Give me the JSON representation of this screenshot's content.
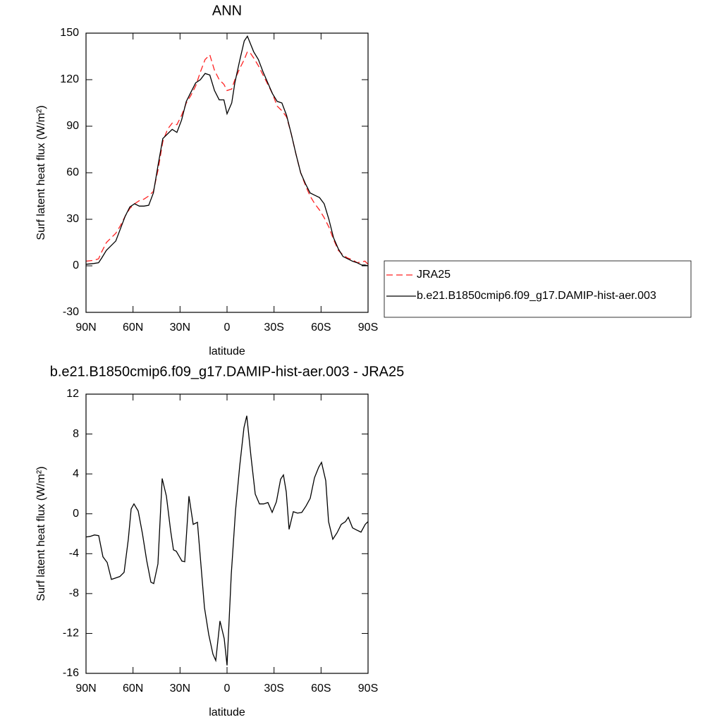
{
  "chart_data": [
    {
      "type": "line",
      "title": "ANN",
      "x_label": "latitude",
      "y_label": "Surf latent heat flux (W/m²)",
      "x": [
        90,
        85,
        82,
        80,
        77,
        74,
        71,
        68,
        65,
        62,
        59,
        56,
        53,
        50,
        47,
        44,
        41,
        38,
        35,
        32,
        29,
        26,
        23,
        20,
        17,
        14,
        11,
        8,
        5,
        2,
        0,
        -3,
        -5,
        -8,
        -11,
        -13,
        -15,
        -17,
        -20,
        -23,
        -26,
        -29,
        -32,
        -35,
        -38,
        -41,
        -44,
        -47,
        -50,
        -53,
        -56,
        -59,
        -62,
        -65,
        -68,
        -71,
        -74,
        -77,
        -80,
        -83,
        -86,
        -88,
        -90
      ],
      "series": [
        {
          "name": "JRA25",
          "color": "#ff2020",
          "line_style": "dashed",
          "values": [
            3,
            3.5,
            4.5,
            9,
            15,
            18,
            21,
            26,
            32,
            37,
            40,
            42,
            43,
            45,
            48,
            62,
            80,
            88,
            92,
            91,
            97,
            105,
            110,
            116,
            125,
            133,
            136,
            126,
            120,
            117,
            113,
            114,
            120,
            127,
            133,
            138,
            137,
            134,
            129,
            123,
            117,
            111,
            103,
            100,
            96,
            85,
            72,
            60,
            52,
            45,
            40,
            36,
            31,
            25,
            17,
            10,
            7,
            5,
            4,
            2,
            2.5,
            3,
            1
          ]
        },
        {
          "name": "b.e21.B1850cmip6.f09_g17.DAMIP-hist-aer.003",
          "color": "#000000",
          "line_style": "solid",
          "values": [
            1,
            1.5,
            2,
            5,
            10,
            13,
            16,
            24,
            32,
            38,
            40,
            38.5,
            38.5,
            39,
            47,
            65,
            82,
            85,
            88,
            86,
            94,
            106,
            112,
            118,
            120,
            124,
            123,
            113,
            107,
            107,
            98,
            105,
            118,
            132,
            145,
            148,
            143,
            138,
            133,
            125,
            118,
            111,
            106,
            105,
            97,
            85,
            72,
            60,
            53,
            47,
            45.5,
            44,
            40,
            30,
            18,
            11,
            6,
            4.5,
            3,
            2,
            0.5,
            0.5,
            0
          ]
        }
      ],
      "xlim": [
        90,
        -90
      ],
      "xticks": [
        {
          "value": 90,
          "label": "90N"
        },
        {
          "value": 60,
          "label": "60N"
        },
        {
          "value": 30,
          "label": "30N"
        },
        0,
        {
          "value": -30,
          "label": "30S"
        },
        {
          "value": -60,
          "label": "60S"
        },
        {
          "value": -90,
          "label": "90S"
        }
      ],
      "ylim": [
        -30,
        150
      ],
      "yticks": [
        -30,
        0,
        30,
        60,
        90,
        120,
        150
      ],
      "legend": "right"
    },
    {
      "type": "line",
      "title": "b.e21.B1850cmip6.f09_g17.DAMIP-hist-aer.003 - JRA25",
      "x_label": "latitude",
      "y_label": "Surf latent heat flux (W/m²)",
      "x": [
        90,
        87.3,
        84.6,
        81.9,
        79.2,
        76.5,
        73.8,
        71.1,
        68.4,
        65.7,
        63,
        61.2,
        59.4,
        56.7,
        54,
        51.3,
        48.6,
        46.8,
        44.1,
        41.4,
        38.7,
        36,
        34.2,
        32.4,
        28.8,
        27,
        24.3,
        21.6,
        18.9,
        14.4,
        11.7,
        9,
        7.2,
        4.5,
        1.8,
        0,
        -2.7,
        -5.4,
        -8.1,
        -10.8,
        -12.6,
        -15.3,
        -18,
        -20.7,
        -23.4,
        -26.1,
        -28.8,
        -31.5,
        -34.2,
        -36,
        -37.8,
        -39.6,
        -42.3,
        -45,
        -47.7,
        -50.4,
        -53.1,
        -55.8,
        -58.5,
        -60.3,
        -63,
        -64.8,
        -67.5,
        -70.2,
        -72.9,
        -75.6,
        -77.4,
        -80.1,
        -82.8,
        -85.5,
        -88.2,
        -90
      ],
      "values": [
        -2.33,
        -2.26,
        -2.12,
        -2.19,
        -4.31,
        -4.88,
        -6.58,
        -6.44,
        -6.29,
        -5.87,
        -2.55,
        0.49,
        0.99,
        0.28,
        -1.98,
        -4.67,
        -6.86,
        -7.0,
        -5.02,
        3.54,
        1.77,
        -1.7,
        -3.61,
        -3.75,
        -4.74,
        -4.81,
        1.77,
        -1.06,
        -0.85,
        -9.41,
        -12.09,
        -14.07,
        -14.71,
        -10.75,
        -12.52,
        -15.2,
        -6.08,
        0.28,
        4.81,
        8.63,
        9.83,
        5.73,
        1.98,
        0.99,
        0.99,
        1.13,
        0.14,
        1.2,
        3.47,
        3.9,
        2.19,
        -1.56,
        0.21,
        0.07,
        0.14,
        0.78,
        1.56,
        3.61,
        4.67,
        5.16,
        3.32,
        -0.78,
        -2.55,
        -1.91,
        -1.06,
        -0.78,
        -0.35,
        -1.41,
        -1.63,
        -1.84,
        -1.06,
        -0.78
      ],
      "color": "#000000",
      "xlim": [
        90,
        -90
      ],
      "xticks": [
        {
          "value": 90,
          "label": "90N"
        },
        {
          "value": 60,
          "label": "60N"
        },
        {
          "value": 30,
          "label": "30N"
        },
        0,
        {
          "value": -30,
          "label": "30S"
        },
        {
          "value": -60,
          "label": "60S"
        },
        {
          "value": -90,
          "label": "90S"
        }
      ],
      "ylim": [
        -16,
        12
      ],
      "yticks": [
        -16,
        -12,
        -8,
        -4,
        0,
        4,
        8,
        12
      ]
    }
  ]
}
